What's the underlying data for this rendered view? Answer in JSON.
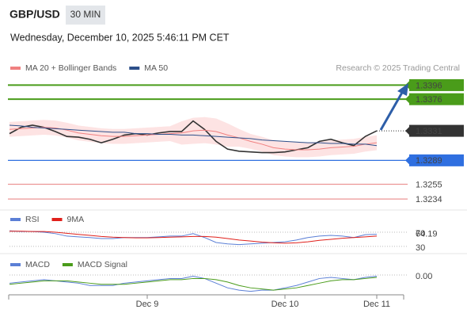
{
  "header": {
    "symbol": "GBP/USD",
    "interval": "30 MIN",
    "datetime": "Wednesday, December 10, 2025 5:46:11 PM CET",
    "source": "Research © 2025 Trading Central"
  },
  "chart_data": [
    {
      "type": "line",
      "name": "price",
      "ylim": [
        1.3224,
        1.341
      ],
      "series": [
        {
          "name": "Price",
          "color": "#333333",
          "values": [
            1.3327,
            1.3336,
            1.3339,
            1.3336,
            1.333,
            1.3323,
            1.3322,
            1.3319,
            1.3314,
            1.3319,
            1.3325,
            1.3327,
            1.3325,
            1.3328,
            1.333,
            1.333,
            1.3345,
            1.3333,
            1.3316,
            1.3305,
            1.3302,
            1.3301,
            1.33,
            1.33,
            1.3301,
            1.3304,
            1.3307,
            1.3316,
            1.3319,
            1.3314,
            1.331,
            1.3323,
            1.3331
          ]
        },
        {
          "name": "MA 20 + Bollinger Bands",
          "color": "#f08080",
          "band_color": "#fde3e3",
          "values": [
            1.3333,
            1.3334,
            1.3335,
            1.3336,
            1.3335,
            1.3332,
            1.3328,
            1.3326,
            1.3324,
            1.3323,
            1.3323,
            1.3324,
            1.3325,
            1.3326,
            1.3327,
            1.3328,
            1.3331,
            1.3332,
            1.333,
            1.3325,
            1.3321,
            1.3316,
            1.3312,
            1.3307,
            1.3305,
            1.3304,
            1.3304,
            1.3305,
            1.3307,
            1.3308,
            1.3309,
            1.3312,
            1.3314
          ],
          "upper": [
            1.3343,
            1.3344,
            1.3345,
            1.3346,
            1.3345,
            1.3342,
            1.3338,
            1.3336,
            1.3334,
            1.3333,
            1.3333,
            1.3334,
            1.3335,
            1.3336,
            1.3337,
            1.3344,
            1.3349,
            1.335,
            1.3348,
            1.3341,
            1.3333,
            1.3326,
            1.3322,
            1.3317,
            1.3315,
            1.3314,
            1.3314,
            1.3315,
            1.3317,
            1.3318,
            1.3319,
            1.3322,
            1.3324
          ],
          "lower": [
            1.3323,
            1.3324,
            1.3325,
            1.3326,
            1.3325,
            1.3322,
            1.3318,
            1.3316,
            1.3314,
            1.3313,
            1.3313,
            1.3314,
            1.3315,
            1.3316,
            1.3317,
            1.3312,
            1.3313,
            1.3314,
            1.3312,
            1.3309,
            1.3309,
            1.3306,
            1.3302,
            1.3297,
            1.3295,
            1.3294,
            1.3294,
            1.3295,
            1.3297,
            1.3298,
            1.3299,
            1.3302,
            1.3304
          ]
        },
        {
          "name": "MA 50",
          "color": "#2d4f8a",
          "values": [
            1.3339,
            1.3338,
            1.3336,
            1.3335,
            1.3334,
            1.3333,
            1.3332,
            1.3331,
            1.333,
            1.3329,
            1.3329,
            1.3327,
            1.3327,
            1.3326,
            1.3326,
            1.3325,
            1.3325,
            1.3324,
            1.3323,
            1.3322,
            1.3321,
            1.332,
            1.3318,
            1.3317,
            1.3316,
            1.3315,
            1.3314,
            1.3314,
            1.3313,
            1.3313,
            1.3312,
            1.3312,
            1.331
          ]
        }
      ],
      "levels": [
        {
          "value": 1.3396,
          "color": "#4a9c1a",
          "box": true,
          "line": "solid"
        },
        {
          "value": 1.3376,
          "color": "#4a9c1a",
          "box": true,
          "line": "solid"
        },
        {
          "value": 1.3331,
          "color": "#333333",
          "box": true,
          "line": "dotted"
        },
        {
          "value": 1.3289,
          "color": "#2f6fe0",
          "box": true,
          "line": "solid"
        },
        {
          "value": 1.3255,
          "color": "#e05050",
          "box": false,
          "line": "solid"
        },
        {
          "value": 1.3234,
          "color": "#e05050",
          "box": false,
          "line": "solid"
        }
      ]
    },
    {
      "type": "line",
      "name": "rsi",
      "ylim": [
        14,
        88
      ],
      "yticks": [
        30,
        70
      ],
      "series": [
        {
          "name": "RSI",
          "color": "#5b7fd6",
          "values": [
            74,
            72,
            72,
            70,
            66,
            59,
            57,
            55,
            52,
            52,
            55,
            55,
            55,
            57,
            59,
            59,
            66,
            55,
            41,
            37,
            35,
            37,
            39,
            41,
            43,
            48,
            55,
            59,
            61,
            59,
            55,
            63,
            64.19
          ]
        },
        {
          "name": "9MA",
          "color": "#e0201b",
          "values": [
            73,
            73,
            72,
            72,
            70,
            67,
            64,
            61,
            58,
            56,
            55,
            54,
            54,
            55,
            56,
            57,
            58,
            58,
            56,
            52,
            48,
            45,
            42,
            40,
            39,
            40,
            43,
            47,
            50,
            53,
            55,
            57,
            59
          ]
        }
      ]
    },
    {
      "type": "line",
      "name": "macd",
      "ylim": [
        -0.0017,
        0.0015
      ],
      "yticks": [
        {
          "value": 0,
          "label": "0.00"
        }
      ],
      "categories": [
        null,
        null,
        null,
        null,
        null,
        null,
        null,
        null,
        null,
        null,
        null,
        null,
        "Dec 9",
        null,
        null,
        null,
        null,
        null,
        null,
        null,
        null,
        null,
        null,
        null,
        "Dec 10",
        null,
        null,
        null,
        null,
        null,
        null,
        null,
        "Dec 11"
      ],
      "series": [
        {
          "name": "MACD",
          "color": "#5b7fd6",
          "values": [
            -0.0007,
            -0.0006,
            -0.0005,
            -0.0004,
            -0.0005,
            -0.0006,
            -0.0007,
            -0.0009,
            -0.0009,
            -0.0009,
            -0.0007,
            -0.0006,
            -0.0005,
            -0.0004,
            -0.0003,
            -0.0003,
            -0.0001,
            -0.0003,
            -0.0007,
            -0.0011,
            -0.0013,
            -0.0014,
            -0.0013,
            -0.0013,
            -0.0011,
            -0.0009,
            -0.0006,
            -0.0003,
            -0.0002,
            -0.0003,
            -0.0004,
            -0.0002,
            -0.0001
          ]
        },
        {
          "name": "MACD Signal",
          "color": "#4a9c1a",
          "values": [
            -0.0008,
            -0.0007,
            -0.0006,
            -0.0005,
            -0.0005,
            -0.0005,
            -0.0006,
            -0.0007,
            -0.0008,
            -0.0008,
            -0.0008,
            -0.0007,
            -0.0006,
            -0.0005,
            -0.0004,
            -0.0004,
            -0.0003,
            -0.0003,
            -0.0004,
            -0.0006,
            -0.0009,
            -0.0011,
            -0.0012,
            -0.0013,
            -0.0012,
            -0.0011,
            -0.0009,
            -0.0007,
            -0.0005,
            -0.0004,
            -0.0004,
            -0.0003,
            -0.0002
          ]
        }
      ]
    }
  ]
}
